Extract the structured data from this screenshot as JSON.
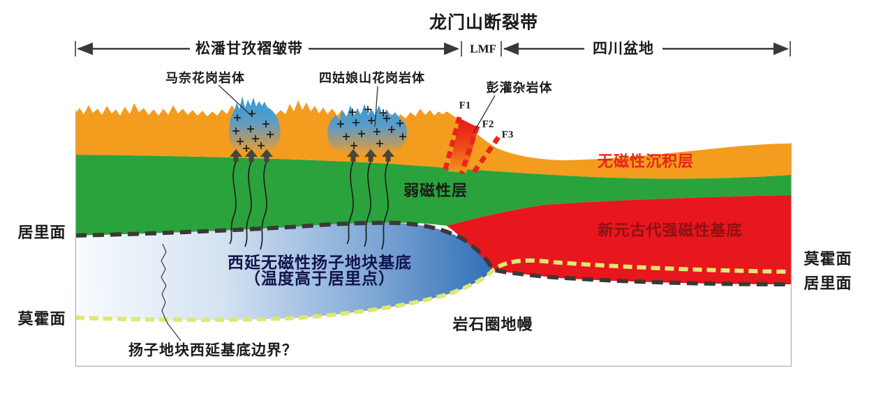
{
  "header": {
    "title": "龙门山断裂带",
    "left_span_label": "松潘甘孜褶皱带",
    "fault_zone_abbr": "LMF",
    "right_span_label": "四川盆地"
  },
  "annotations": {
    "granite_manai": "马奈花岗岩体",
    "granite_siguniang": "四姑娘山花岗岩体",
    "pengguan_complex": "彭灌杂岩体",
    "fault_f1": "F1",
    "fault_f2": "F2",
    "fault_f3": "F3",
    "basement_boundary_question": "扬子地块西延基底边界？"
  },
  "layers": {
    "nonmagnetic_sediment": "无磁性沉积层",
    "weakly_magnetic": "弱磁性层",
    "neoproterozoic_basement": "新元古代强磁性基底",
    "yangtze_basement_line1": "西延无磁性扬子地块基底",
    "yangtze_basement_line2": "（温度高于居里点）",
    "lithospheric_mantle": "岩石圈地幔"
  },
  "margin_labels": {
    "left_curie": "居里面",
    "left_moho": "莫霍面",
    "right_moho": "莫霍面",
    "right_curie": "居里面"
  },
  "colors": {
    "sediment_orange": "#f39c1e",
    "weak_magnetic_green": "#2aa33c",
    "basement_red": "#e8161d",
    "granite_blue": "#2f9ad6",
    "yangtze_lens_blue": "#2d6cb5",
    "curie_dash_dark": "#3d3835",
    "moho_dash_yellow": "#dde873",
    "fault_dash_red": "#e8251c",
    "sediment_label_red": "#e8251c",
    "basement_label_darkred": "#8e1014",
    "yangtze_label_navy": "#12124a",
    "arrow_dark": "#3d3835"
  }
}
